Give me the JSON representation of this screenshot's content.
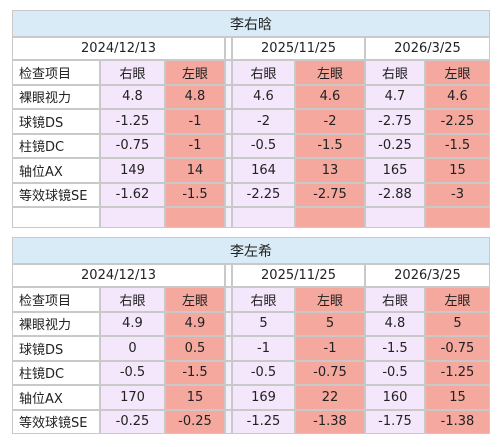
{
  "blocks": [
    {
      "name": "李右晗",
      "dates": [
        "2024/12/13",
        "2025/11/25",
        "2026/3/25"
      ],
      "header": [
        "检查项目",
        "右眼",
        "左眼",
        "右眼",
        "左眼",
        "右眼",
        "左眼"
      ],
      "rows": [
        {
          "label": "裸眼视力",
          "values": [
            "4.8",
            "4.8",
            "4.6",
            "4.6",
            "4.7",
            "4.6"
          ]
        },
        {
          "label": "球镜DS",
          "values": [
            "-1.25",
            "-1",
            "-2",
            "-2",
            "-2.75",
            "-2.25"
          ]
        },
        {
          "label": "柱镜DC",
          "values": [
            "-0.75",
            "-1",
            "-0.5",
            "-1.5",
            "-0.25",
            "-1.5"
          ]
        },
        {
          "label": "轴位AX",
          "values": [
            "149",
            "14",
            "164",
            "13",
            "165",
            "15"
          ]
        },
        {
          "label": "等效球镜SE",
          "values": [
            "-1.62",
            "-1.5",
            "-2.25",
            "-2.75",
            "-2.88",
            "-3"
          ]
        }
      ],
      "trailing_empty_row": true
    },
    {
      "name": "李左希",
      "dates": [
        "2024/12/13",
        "2025/11/25",
        "2026/3/25"
      ],
      "header": [
        "检查项目",
        "右眼",
        "左眼",
        "右眼",
        "左眼",
        "右眼",
        "左眼"
      ],
      "rows": [
        {
          "label": "裸眼视力",
          "values": [
            "4.9",
            "4.9",
            "5",
            "5",
            "4.8",
            "5"
          ]
        },
        {
          "label": "球镜DS",
          "values": [
            "0",
            "0.5",
            "-1",
            "-1",
            "-1.5",
            "-0.75"
          ]
        },
        {
          "label": "柱镜DC",
          "values": [
            "-0.5",
            "-1.5",
            "-0.5",
            "-0.75",
            "-0.5",
            "-1.25"
          ]
        },
        {
          "label": "轴位AX",
          "values": [
            "170",
            "15",
            "169",
            "22",
            "160",
            "15"
          ]
        },
        {
          "label": "等效球镜SE",
          "values": [
            "-0.25",
            "-0.25",
            "-1.25",
            "-1.38",
            "-1.75",
            "-1.38"
          ]
        }
      ],
      "trailing_empty_row": false
    }
  ]
}
